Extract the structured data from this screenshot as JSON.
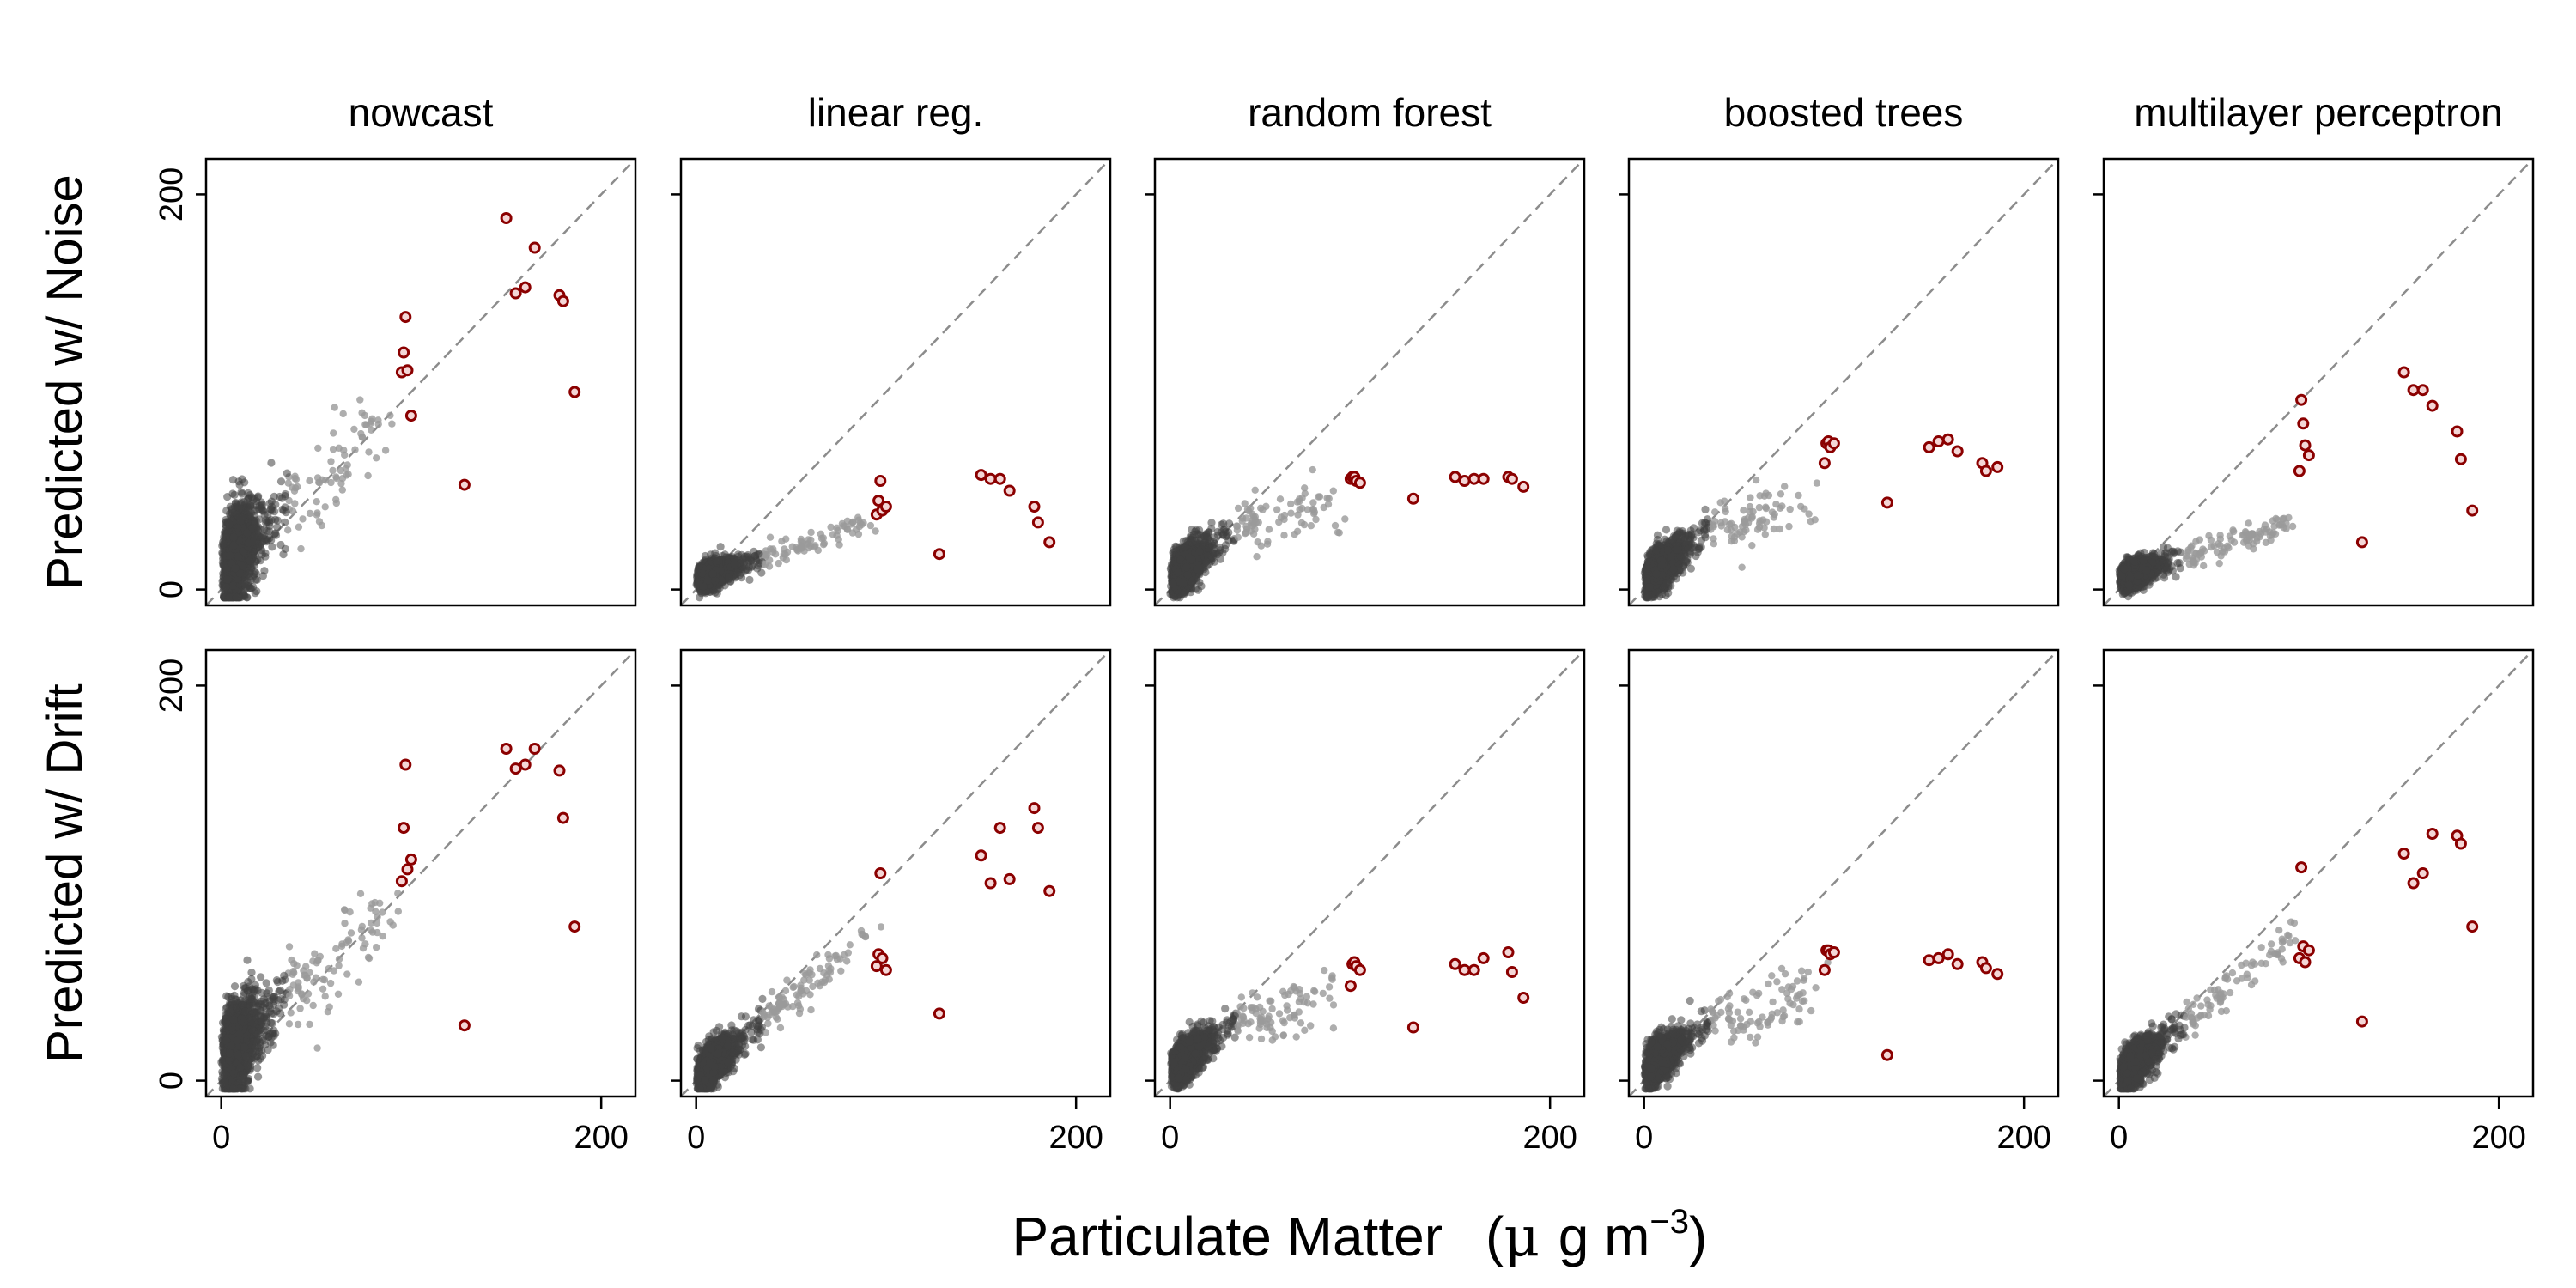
{
  "chart_data": {
    "type": "scatter",
    "xlabel_text": "Particulate Matter",
    "xlabel_unit_open": "(",
    "xlabel_unit_mu": "μ",
    "xlabel_unit_g": "g m",
    "xlabel_unit_exp": "−3",
    "xlabel_unit_close": ")",
    "columns": [
      "nowcast",
      "linear reg.",
      "random forest",
      "boosted trees",
      "multilayer perceptron"
    ],
    "rows": [
      "Predicted w/ Noise",
      "Predicted w/ Drift"
    ],
    "xlim": [
      -8,
      218
    ],
    "ylim": [
      -8,
      218
    ],
    "x_ticks": [
      0,
      200
    ],
    "y_ticks": [
      0,
      200
    ],
    "reference_line": "y = x",
    "colors": {
      "bulk": "#404040",
      "bulk_light": "#9a9a9a",
      "highlight_outline": "#8b0000",
      "highlight_fill": "#f4d6d6",
      "reference_line": "#8c8c8c"
    },
    "highlight_x": [
      95,
      96,
      97,
      98,
      100,
      128,
      150,
      155,
      160,
      165,
      178,
      180,
      186
    ],
    "panels": [
      {
        "row": 0,
        "col": 0,
        "bulk_profile": "nowcast",
        "highlight_y": [
          110,
          120,
          138,
          111,
          88,
          53,
          188,
          150,
          153,
          173,
          149,
          146,
          100
        ]
      },
      {
        "row": 0,
        "col": 1,
        "bulk_profile": "compressed",
        "highlight_y": [
          38,
          45,
          55,
          40,
          42,
          18,
          58,
          56,
          56,
          50,
          42,
          34,
          24
        ]
      },
      {
        "row": 0,
        "col": 2,
        "bulk_profile": "forest",
        "highlight_y": [
          56,
          57,
          57,
          55,
          54,
          46,
          57,
          55,
          56,
          56,
          57,
          56,
          52
        ]
      },
      {
        "row": 0,
        "col": 3,
        "bulk_profile": "forest",
        "highlight_y": [
          64,
          74,
          75,
          72,
          74,
          44,
          72,
          75,
          76,
          70,
          64,
          60,
          62
        ]
      },
      {
        "row": 0,
        "col": 4,
        "bulk_profile": "compressed",
        "highlight_y": [
          60,
          96,
          84,
          73,
          68,
          24,
          110,
          101,
          101,
          93,
          80,
          66,
          40
        ]
      },
      {
        "row": 1,
        "col": 0,
        "bulk_profile": "nowcast",
        "highlight_y": [
          101,
          128,
          160,
          107,
          112,
          28,
          168,
          158,
          160,
          168,
          157,
          133,
          78
        ]
      },
      {
        "row": 1,
        "col": 1,
        "bulk_profile": "linear",
        "highlight_y": [
          58,
          64,
          105,
          62,
          56,
          34,
          114,
          100,
          128,
          102,
          138,
          128,
          96
        ]
      },
      {
        "row": 1,
        "col": 2,
        "bulk_profile": "forest",
        "highlight_y": [
          48,
          59,
          60,
          58,
          56,
          27,
          59,
          56,
          56,
          62,
          65,
          55,
          42
        ]
      },
      {
        "row": 1,
        "col": 3,
        "bulk_profile": "forest",
        "highlight_y": [
          56,
          66,
          66,
          64,
          65,
          13,
          61,
          62,
          64,
          59,
          60,
          57,
          54
        ]
      },
      {
        "row": 1,
        "col": 4,
        "bulk_profile": "linear",
        "highlight_y": [
          62,
          108,
          68,
          60,
          66,
          30,
          115,
          100,
          105,
          125,
          124,
          120,
          78
        ]
      }
    ]
  }
}
